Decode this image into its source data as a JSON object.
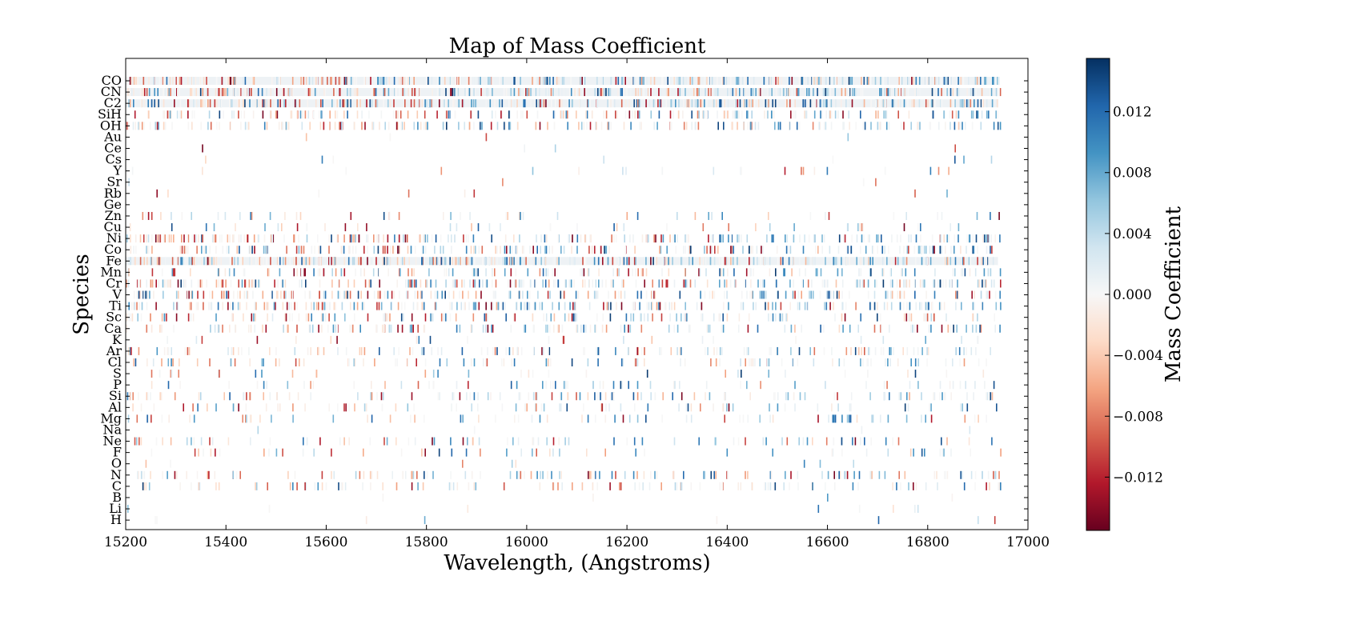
{
  "chart_data": {
    "type": "heatmap",
    "title": "Map of Mass Coefficient",
    "xlabel": "Wavelength, (Angstroms)",
    "ylabel": "Species",
    "xlim": [
      15200,
      17000
    ],
    "x_ticks": [
      15200,
      15400,
      15600,
      15800,
      16000,
      16200,
      16400,
      16600,
      16800,
      17000
    ],
    "species": [
      "CO",
      "CN",
      "C2",
      "SiH",
      "OH",
      "Au",
      "Ce",
      "Cs",
      "Y",
      "Sr",
      "Rb",
      "Ge",
      "Zn",
      "Cu",
      "Ni",
      "Co",
      "Fe",
      "Mn",
      "Cr",
      "V",
      "Ti",
      "Sc",
      "Ca",
      "K",
      "Ar",
      "Cl",
      "S",
      "P",
      "Si",
      "Al",
      "Mg",
      "Na",
      "Ne",
      "F",
      "O",
      "N",
      "C",
      "B",
      "Li",
      "H"
    ],
    "row_density": [
      0.9,
      0.9,
      0.9,
      0.45,
      0.45,
      0.01,
      0.01,
      0.02,
      0.05,
      0.01,
      0.02,
      0.0,
      0.12,
      0.1,
      0.55,
      0.5,
      0.9,
      0.35,
      0.6,
      0.5,
      0.55,
      0.35,
      0.35,
      0.06,
      0.3,
      0.25,
      0.08,
      0.15,
      0.3,
      0.2,
      0.18,
      0.01,
      0.2,
      0.12,
      0.02,
      0.3,
      0.25,
      0.01,
      0.02,
      0.02
    ],
    "colorbar": {
      "label": "Mass Coefficient",
      "vmin": -0.0155,
      "vmax": 0.0155,
      "ticks": [
        0.012,
        0.008,
        0.004,
        0.0,
        -0.004,
        -0.008,
        -0.012
      ],
      "tick_labels": [
        "0.012",
        "0.008",
        "0.004",
        "0.000",
        "−0.004",
        "−0.008",
        "−0.012"
      ],
      "colormap": "RdBu",
      "colors": [
        "#67001f",
        "#b2182b",
        "#d6604d",
        "#f4a582",
        "#fddbc7",
        "#f7f7f7",
        "#d1e5f0",
        "#92c5de",
        "#4393c3",
        "#2166ac",
        "#053061"
      ]
    },
    "grid": false
  }
}
